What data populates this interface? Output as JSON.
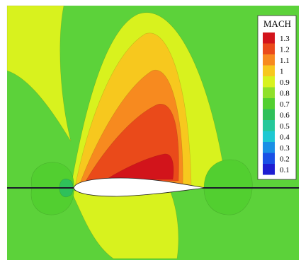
{
  "chart_data": {
    "type": "heatmap",
    "colorbar": {
      "title": "MACH",
      "levels": [
        {
          "value": "1.3",
          "color": "#d2141b"
        },
        {
          "value": "1.2",
          "color": "#ea4a1a"
        },
        {
          "value": "1.1",
          "color": "#f78a1f"
        },
        {
          "value": "1",
          "color": "#f7c81e"
        },
        {
          "value": "0.9",
          "color": "#d8f21e"
        },
        {
          "value": "0.8",
          "color": "#8fe02a"
        },
        {
          "value": "0.7",
          "color": "#52cf30"
        },
        {
          "value": "0.6",
          "color": "#2fc05a"
        },
        {
          "value": "0.5",
          "color": "#25c89a"
        },
        {
          "value": "0.4",
          "color": "#1ec8d2"
        },
        {
          "value": "0.3",
          "color": "#1a8fe6"
        },
        {
          "value": "0.2",
          "color": "#1a50e6"
        },
        {
          "value": "0.1",
          "color": "#1e1ed2"
        }
      ],
      "placement": "top-right"
    },
    "field_regions": [
      {
        "level": "0.8",
        "description": "freestream background"
      },
      {
        "level": "0.9",
        "description": "outer supersonic envelope above airfoil"
      },
      {
        "level": "1",
        "description": "sonic lobe"
      },
      {
        "level": "1.1",
        "description": "supersonic pocket"
      },
      {
        "level": "1.2",
        "description": "inner supersonic pocket"
      },
      {
        "level": "1.3",
        "description": "peak Mach near upper surface"
      },
      {
        "level": "0.6",
        "description": "stagnation region ahead of leading edge"
      },
      {
        "level": "0.7",
        "description": "low-speed bubble aft of trailing edge"
      }
    ],
    "colors": {
      "background": "#5cd23a",
      "airfoil": "#ffffff",
      "chord_line": "#1a1a2a"
    }
  }
}
